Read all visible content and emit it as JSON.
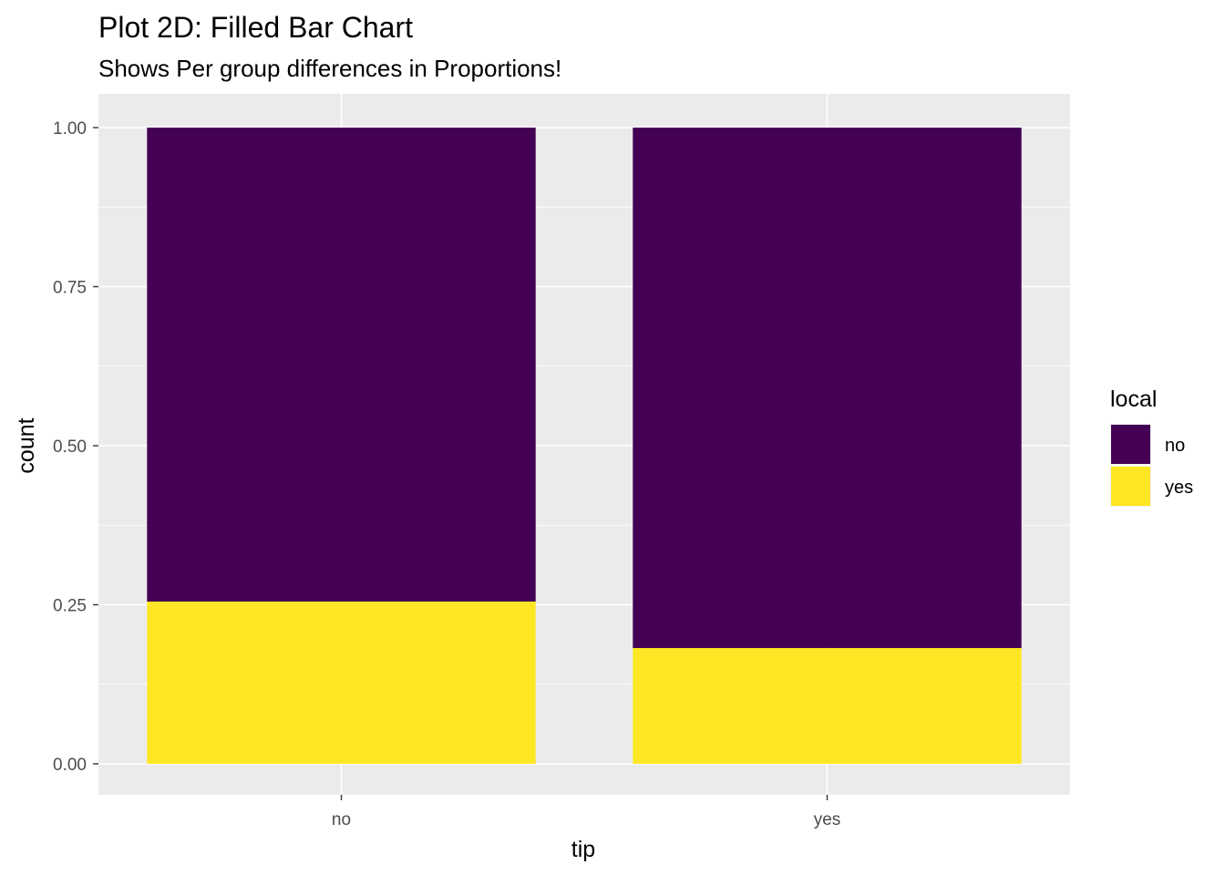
{
  "chart_data": {
    "type": "bar",
    "stacked": true,
    "position": "fill",
    "title": "Plot 2D: Filled Bar Chart",
    "subtitle": "Shows Per group differences in Proportions!",
    "xlabel": "tip",
    "ylabel": "count",
    "categories": [
      "no",
      "yes"
    ],
    "ylim": [
      0,
      1
    ],
    "y_ticks": [
      0,
      0.25,
      0.5,
      0.75,
      1
    ],
    "y_tick_labels": [
      "0.00",
      "0.25",
      "0.50",
      "0.75",
      "1.00"
    ],
    "grid": true,
    "legend": {
      "title": "local",
      "placement": "right"
    },
    "series": [
      {
        "name": "yes",
        "color": "#FDE725",
        "values": [
          0.255,
          0.182
        ]
      },
      {
        "name": "no",
        "color": "#440154",
        "values": [
          0.745,
          0.818
        ]
      }
    ],
    "legend_order": [
      "no",
      "yes"
    ],
    "colors": {
      "panel_background": "#EBEBEB",
      "grid_major": "#FFFFFF",
      "grid_minor": "#F5F5F5",
      "tick_text": "#4D4D4D",
      "tick_mark": "#333333"
    }
  }
}
